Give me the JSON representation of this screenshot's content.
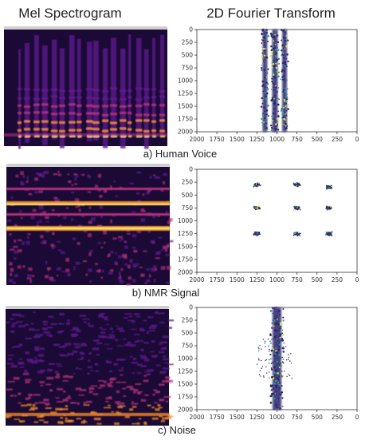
{
  "headers": {
    "left": "Mel Spectrogram",
    "right": "2D Fourier Transform"
  },
  "colors": {
    "spec_dark": "#1a0a35",
    "spec_purple": "#5c1a8c",
    "spec_magenta": "#b0307a",
    "spec_orange": "#f08a2a",
    "spec_yellow": "#fdf17a",
    "fft_navy": "#26246b",
    "fft_teal": "#1fa08a",
    "fft_yellow": "#d8e83a"
  },
  "chart_data": [
    {
      "type": "heatmap",
      "id": "a-mel",
      "caption": "",
      "note": "Mel spectrogram of human voice: strong harmonic bands in the lower region with vertical syllable bursts"
    },
    {
      "type": "scatter",
      "id": "a-fft",
      "caption": "a) Human Voice",
      "xlim": [
        2000,
        0
      ],
      "ylim": [
        2000,
        0
      ],
      "xticks": [
        "2000",
        "1750",
        "1500",
        "1250",
        "1000",
        "750",
        "500",
        "250",
        "0"
      ],
      "yticks": [
        "0",
        "250",
        "500",
        "750",
        "1000",
        "1250",
        "1500",
        "1750",
        "2000"
      ],
      "bands": [
        {
          "x_center": 1150,
          "x_width": 60,
          "y_range": [
            0,
            2000
          ]
        },
        {
          "x_center": 1025,
          "x_width": 70,
          "y_range": [
            0,
            2000
          ]
        },
        {
          "x_center": 905,
          "x_width": 60,
          "y_range": [
            0,
            2000
          ]
        }
      ]
    },
    {
      "type": "heatmap",
      "id": "b-mel",
      "caption": "",
      "note": "Mel spectrogram of NMR signal: continuous horizontal bright lines"
    },
    {
      "type": "scatter",
      "id": "b-fft",
      "caption": "b) NMR Signal",
      "xlim": [
        2000,
        0
      ],
      "ylim": [
        2000,
        0
      ],
      "xticks": [
        "2000",
        "1750",
        "1500",
        "1250",
        "1000",
        "750",
        "500",
        "250",
        "0"
      ],
      "yticks": [
        "0",
        "250",
        "500",
        "750",
        "1000",
        "1250",
        "1500",
        "1750",
        "2000"
      ],
      "clusters": [
        {
          "x": 1250,
          "y": 300
        },
        {
          "x": 750,
          "y": 300
        },
        {
          "x": 350,
          "y": 350
        },
        {
          "x": 1250,
          "y": 750
        },
        {
          "x": 750,
          "y": 750
        },
        {
          "x": 350,
          "y": 750
        },
        {
          "x": 1250,
          "y": 1250
        },
        {
          "x": 750,
          "y": 1250
        },
        {
          "x": 350,
          "y": 1250
        }
      ]
    },
    {
      "type": "heatmap",
      "id": "c-mel",
      "caption": "",
      "note": "Mel spectrogram of noise: diffuse texture with brighter low band"
    },
    {
      "type": "scatter",
      "id": "c-fft",
      "caption": "c) Noise",
      "xlim": [
        2000,
        0
      ],
      "ylim": [
        2000,
        0
      ],
      "xticks": [
        "2000",
        "1750",
        "1500",
        "1250",
        "1000",
        "750",
        "500",
        "250",
        "0"
      ],
      "yticks": [
        "0",
        "250",
        "500",
        "750",
        "1000",
        "1250",
        "1500",
        "1750",
        "2000"
      ],
      "bands": [
        {
          "x_center": 1000,
          "x_width": 110,
          "y_range": [
            0,
            2000
          ]
        }
      ],
      "outliers_x_range": [
        1250,
        800
      ]
    }
  ]
}
